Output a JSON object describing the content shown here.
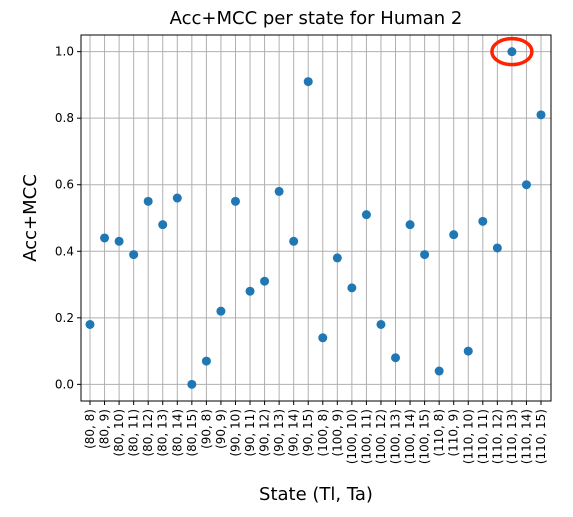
{
  "chart_data": {
    "type": "scatter",
    "title": "Acc+MCC per state for Human 2",
    "xlabel": "State (Tl, Ta)",
    "ylabel": "Acc+MCC",
    "categories": [
      "(80, 8)",
      "(80, 9)",
      "(80, 10)",
      "(80, 11)",
      "(80, 12)",
      "(80, 13)",
      "(80, 14)",
      "(80, 15)",
      "(90, 8)",
      "(90, 9)",
      "(90, 10)",
      "(90, 11)",
      "(90, 12)",
      "(90, 13)",
      "(90, 14)",
      "(90, 15)",
      "(100, 8)",
      "(100, 9)",
      "(100, 10)",
      "(100, 11)",
      "(100, 12)",
      "(100, 13)",
      "(100, 14)",
      "(100, 15)",
      "(110, 8)",
      "(110, 9)",
      "(110, 10)",
      "(110, 11)",
      "(110, 12)",
      "(110, 13)",
      "(110, 14)",
      "(110, 15)"
    ],
    "values": [
      0.18,
      0.44,
      0.43,
      0.39,
      0.55,
      0.48,
      0.56,
      0.0,
      0.07,
      0.22,
      0.55,
      0.28,
      0.31,
      0.58,
      0.43,
      0.91,
      0.14,
      0.38,
      0.29,
      0.51,
      0.18,
      0.08,
      0.48,
      0.39,
      0.04,
      0.45,
      0.1,
      0.49,
      0.41,
      1.0,
      0.6,
      0.81
    ],
    "yticks": [
      "0.0",
      "0.2",
      "0.4",
      "0.6",
      "0.8",
      "1.0"
    ],
    "ylim": [
      -0.05,
      1.05
    ],
    "grid": true,
    "highlight_index": 29,
    "colors": {
      "marker": "#1f77b4",
      "grid": "#b0b0b0",
      "highlight": "#ff2200"
    }
  }
}
